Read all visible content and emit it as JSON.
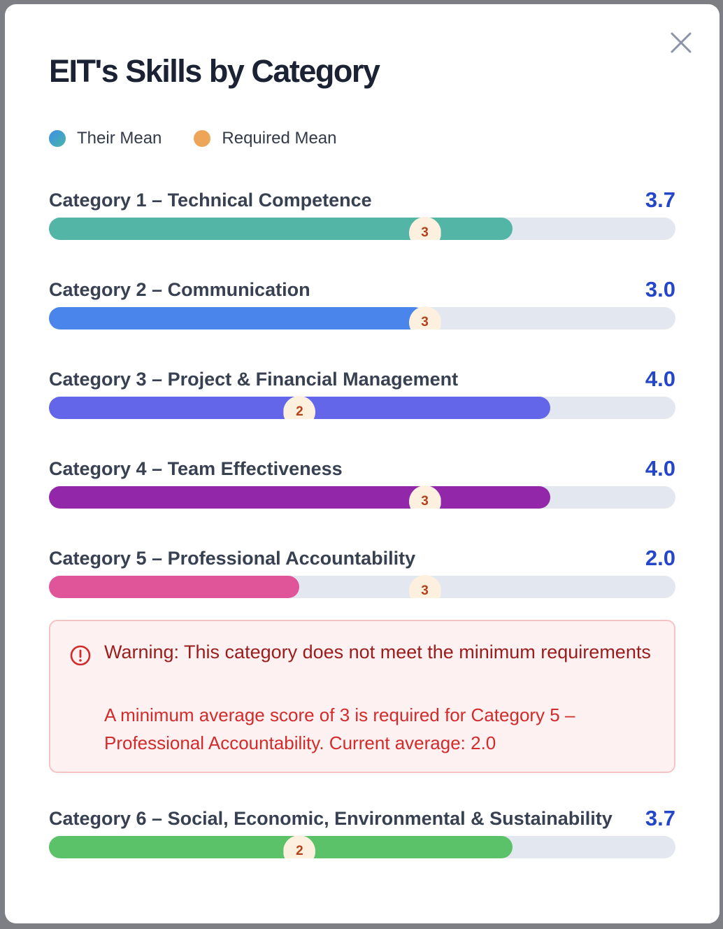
{
  "modal": {
    "title": "EIT's Skills by Category",
    "close_icon": "close-icon"
  },
  "legend": {
    "their_mean": "Their Mean",
    "required_mean": "Required Mean"
  },
  "categories": [
    {
      "name": "Category 1 – Technical Competence",
      "score": "3.7",
      "value": 3.7,
      "required": "3",
      "required_value": 3,
      "color": "#52b5a6"
    },
    {
      "name": "Category 2 – Communication",
      "score": "3.0",
      "value": 3.0,
      "required": "3",
      "required_value": 3,
      "color": "#4a85ec"
    },
    {
      "name": "Category 3 – Project & Financial Management",
      "score": "4.0",
      "value": 4.0,
      "required": "2",
      "required_value": 2,
      "color": "#6366e9"
    },
    {
      "name": "Category 4 – Team Effectiveness",
      "score": "4.0",
      "value": 4.0,
      "required": "3",
      "required_value": 3,
      "color": "#9228a9"
    },
    {
      "name": "Category 5 – Professional Accountability",
      "score": "2.0",
      "value": 2.0,
      "required": "3",
      "required_value": 3,
      "color": "#e0549a"
    },
    {
      "name": "Category 6 – Social, Economic, Environmental & Sustainability",
      "score": "3.7",
      "value": 3.7,
      "required": "2",
      "required_value": 2,
      "color": "#5cc26a"
    }
  ],
  "scale_max": 5,
  "warning": {
    "title": "Warning: This category does not meet the minimum requirements",
    "body": "A minimum average score of 3 is required for Category 5 – Professional Accountability. Current average: 2.0",
    "icon": "alert-circle-icon"
  }
}
